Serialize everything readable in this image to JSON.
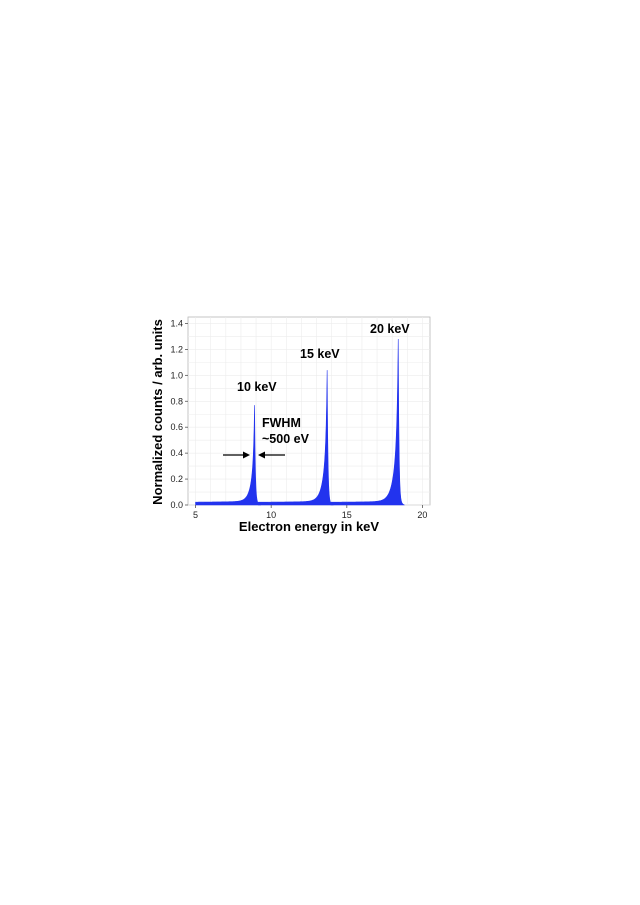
{
  "chart_data": {
    "type": "area",
    "title": "",
    "xlabel": "Electron energy in keV",
    "ylabel": "Normalized counts / arb. units",
    "xlim": [
      4.5,
      20.5
    ],
    "ylim": [
      0,
      1.45
    ],
    "x_ticks": [
      5,
      10,
      15,
      20
    ],
    "y_ticks": [
      0.0,
      0.2,
      0.4,
      0.6,
      0.8,
      1.0,
      1.2,
      1.4
    ],
    "x_tick_labels": [
      "5",
      "10",
      "15",
      "20"
    ],
    "y_tick_labels": [
      "0.0",
      "0.2",
      "0.4",
      "0.6",
      "0.8",
      "1.0",
      "1.2",
      "1.4"
    ],
    "grid": true,
    "fill_color": "#2233ee",
    "series": [
      {
        "peak_energy": 8.9,
        "peak_value": 0.77,
        "baseline": 0.02
      },
      {
        "peak_energy": 13.7,
        "peak_value": 1.04,
        "baseline": 0.02
      },
      {
        "peak_energy": 18.4,
        "peak_value": 1.28,
        "baseline": 0.02
      }
    ],
    "annotations": {
      "peak1_label": "10 keV",
      "peak2_label": "15 keV",
      "peak3_label": "20 keV",
      "fwhm_line1": "FWHM",
      "fwhm_line2": "~500 eV"
    }
  }
}
